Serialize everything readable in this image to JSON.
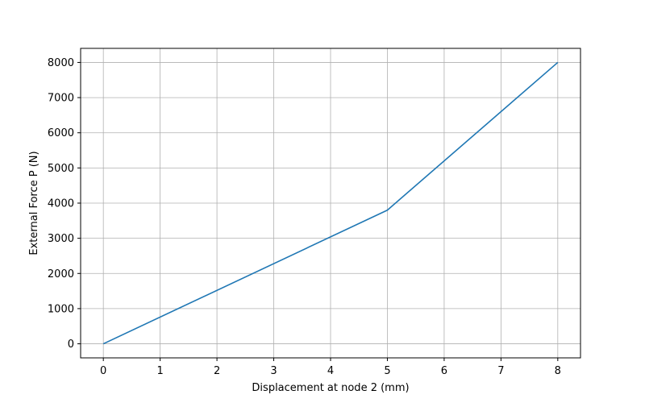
{
  "chart_data": {
    "type": "line",
    "title": "",
    "xlabel": "Displacement at node 2 (mm)",
    "ylabel": "External Force P (N)",
    "xlim": [
      -0.4,
      8.4
    ],
    "ylim": [
      -400,
      8400
    ],
    "x_ticks": [
      0,
      1,
      2,
      3,
      4,
      5,
      6,
      7,
      8
    ],
    "y_ticks": [
      0,
      1000,
      2000,
      3000,
      4000,
      5000,
      6000,
      7000,
      8000
    ],
    "grid": true,
    "legend": "none",
    "series": [
      {
        "color": "#1f77b4",
        "x": [
          0,
          5,
          8
        ],
        "y": [
          0,
          3800,
          8000
        ]
      }
    ]
  }
}
